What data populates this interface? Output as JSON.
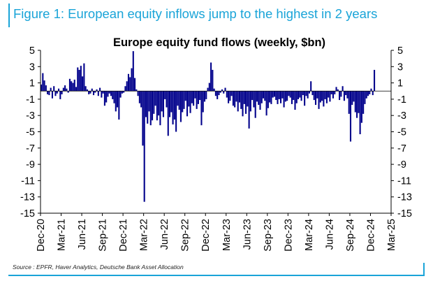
{
  "figure_title": "Figure 1: European equity inflows jump to the highest in 2 years",
  "source": "Source : EPFR, Haver Analytics, Deutsche Bank Asset Allocation",
  "colors": {
    "accent": "#1aa4d8",
    "bar": "#00008b",
    "axis": "#000000"
  },
  "chart_data": {
    "type": "bar",
    "title": "Europe equity fund flows (weekly, $bn)",
    "xlabel": "",
    "ylabel": "",
    "ylim": [
      -15,
      5
    ],
    "yticks": [
      5,
      3,
      1,
      -1,
      -3,
      -5,
      -7,
      -9,
      -11,
      -13,
      -15
    ],
    "right_axis": true,
    "x_tick_labels": [
      "Dec-20",
      "Mar-21",
      "Jun-21",
      "Sep-21",
      "Dec-21",
      "Mar-22",
      "Jun-22",
      "Sep-22",
      "Dec-22",
      "Mar-23",
      "Jun-23",
      "Sep-23",
      "Dec-23",
      "Mar-24",
      "Jun-24",
      "Sep-24",
      "Dec-24",
      "Mar-25"
    ],
    "x_tick_week_index": [
      0,
      13,
      26,
      39,
      52,
      65,
      78,
      91,
      104,
      117,
      130,
      143,
      156,
      169,
      182,
      195,
      208,
      221
    ],
    "values": [
      0.8,
      2.2,
      1.3,
      0.7,
      -0.4,
      -0.5,
      0.4,
      -0.9,
      0.6,
      -0.6,
      -0.3,
      0.3,
      -1.0,
      -0.4,
      0.4,
      0.7,
      0.3,
      -0.2,
      1.5,
      1.2,
      1.0,
      1.4,
      0.5,
      2.9,
      2.6,
      3.1,
      1.8,
      3.4,
      0.6,
      0.2,
      -0.4,
      -0.3,
      0.3,
      -0.5,
      -0.2,
      0.2,
      -0.6,
      0.4,
      -0.8,
      -0.3,
      -1.8,
      -1.4,
      -0.7,
      -0.3,
      -0.6,
      -1.0,
      -1.5,
      -2.5,
      -2.0,
      -3.5,
      -0.8,
      -0.3,
      -0.2,
      0.6,
      1.2,
      2.1,
      1.7,
      2.8,
      4.9,
      1.6,
      0.2,
      -0.6,
      -1.5,
      -2.0,
      -6.7,
      -13.6,
      -3.2,
      -4.0,
      -2.5,
      -4.2,
      -3.6,
      -2.8,
      -1.8,
      -3.6,
      -3.0,
      -4.2,
      -2.5,
      -3.2,
      -1.0,
      -2.0,
      -5.5,
      -3.2,
      -2.6,
      -4.1,
      -3.5,
      -5.0,
      -1.8,
      -2.3,
      -3.8,
      -2.6,
      -2.2,
      -1.2,
      -3.1,
      -1.9,
      -2.7,
      -1.5,
      -1.8,
      -0.9,
      -2.2,
      -1.6,
      -1.1,
      -4.2,
      -2.6,
      -1.3,
      -1.0,
      0.4,
      1.0,
      3.5,
      2.6,
      0.3,
      -0.6,
      -1.0,
      -0.5,
      -0.2,
      0.2,
      -0.3,
      0.4,
      -0.8,
      -1.5,
      -1.2,
      -0.6,
      -1.8,
      -2.0,
      -1.3,
      -2.5,
      -1.4,
      -2.2,
      -3.1,
      -1.6,
      -2.8,
      -1.9,
      -4.6,
      -2.5,
      -1.1,
      -2.0,
      -3.3,
      -1.3,
      -1.7,
      -2.3,
      -1.5,
      -0.9,
      -1.2,
      -3.0,
      -2.1,
      -1.4,
      -1.6,
      -0.8,
      -0.7,
      -1.1,
      -1.6,
      -1.0,
      -1.5,
      -0.9,
      -2.0,
      -1.3,
      -1.2,
      -0.6,
      -0.8,
      -1.6,
      -1.1,
      -2.3,
      -1.5,
      -1.0,
      -0.8,
      -1.2,
      -0.5,
      -1.8,
      -0.6,
      -0.9,
      -0.3,
      1.2,
      -0.5,
      -1.1,
      -1.7,
      -0.9,
      -2.2,
      -1.4,
      -1.2,
      -1.9,
      -1.0,
      -1.5,
      -0.8,
      -1.3,
      -0.4,
      -0.9,
      -0.4,
      0.5,
      0.2,
      -1.1,
      -0.7,
      0.6,
      -1.2,
      -0.5,
      -0.9,
      -2.8,
      -6.2,
      -1.7,
      -1.3,
      -2.6,
      -3.3,
      -2.7,
      -5.3,
      -3.9,
      -2.8,
      -1.6,
      -0.9,
      -0.6,
      -0.4,
      0.3,
      -0.5,
      2.6
    ],
    "data_start": "Dec-20",
    "frequency": "weekly"
  }
}
